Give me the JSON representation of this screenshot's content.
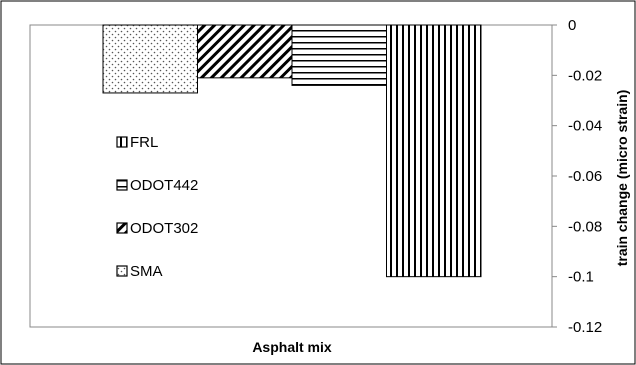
{
  "chart_data": {
    "type": "bar",
    "categories": [
      "Asphalt mix"
    ],
    "xlabel": "Asphalt mix",
    "ylabel": "train change (micro strain)",
    "ylim": [
      -0.12,
      0
    ],
    "y_ticks": [
      "0",
      "-0.02",
      "-0.04",
      "-0.06",
      "-0.08",
      "-0.1",
      "-0.12"
    ],
    "y_axis_position": "right",
    "grid": false,
    "legend_position": "left-inside",
    "series": [
      {
        "name": "SMA",
        "values": [
          -0.027
        ],
        "pattern": "dots"
      },
      {
        "name": "ODOT302",
        "values": [
          -0.021
        ],
        "pattern": "diagonal"
      },
      {
        "name": "ODOT442",
        "values": [
          -0.024
        ],
        "pattern": "horizontal"
      },
      {
        "name": "FRL",
        "values": [
          -0.1
        ],
        "pattern": "vertical"
      }
    ],
    "legend_order": [
      "FRL",
      "ODOT442",
      "ODOT302",
      "SMA"
    ]
  }
}
